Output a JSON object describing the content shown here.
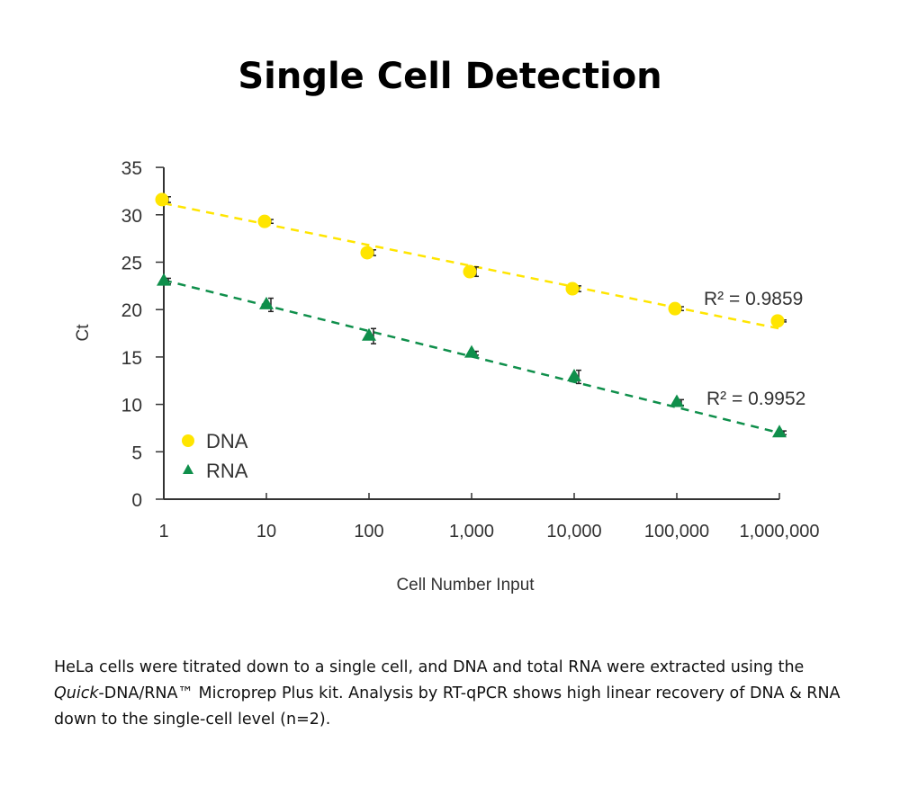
{
  "title": "Single Cell Detection",
  "caption": {
    "part1": "HeLa cells were titrated down to a single cell, and DNA and total RNA were extracted using the ",
    "italic": "Quick",
    "part2": "-DNA/RNA™ Microprep Plus kit. Analysis by RT-qPCR shows high linear recovery of DNA & RNA down to the single-cell level (n=2)."
  },
  "chart_data": {
    "type": "scatter",
    "title": "Single Cell Detection",
    "xlabel": "Cell Number Input",
    "ylabel": "Ct",
    "xscale": "log",
    "x": [
      1,
      10,
      100,
      1000,
      10000,
      100000,
      1000000
    ],
    "xtick_labels": [
      "1",
      "10",
      "100",
      "1,000",
      "10,000",
      "100,000",
      "1,000,000"
    ],
    "yticks": [
      0,
      5,
      10,
      15,
      20,
      25,
      30,
      35
    ],
    "ylim": [
      0,
      35
    ],
    "grid": false,
    "legend_position": "bottom-left",
    "series": [
      {
        "name": "DNA",
        "marker": "circle",
        "color": "#FFE500",
        "values": [
          31.6,
          29.3,
          26.0,
          24.0,
          22.2,
          20.1,
          18.8
        ],
        "errors": [
          0.3,
          0.2,
          0.3,
          0.5,
          0.3,
          0.2,
          0.1
        ],
        "trendline": {
          "start": 31.2,
          "end": 18.0,
          "label": "R² = 0.9859"
        }
      },
      {
        "name": "RNA",
        "marker": "triangle",
        "color": "#0F8F4B",
        "values": [
          23.0,
          20.5,
          17.2,
          15.4,
          12.9,
          10.2,
          7.0
        ],
        "errors": [
          0.3,
          0.7,
          0.8,
          0.2,
          0.7,
          0.3,
          0.2
        ],
        "trendline": {
          "start": 23.1,
          "end": 7.0,
          "label": "R² = 0.9952"
        }
      }
    ]
  }
}
